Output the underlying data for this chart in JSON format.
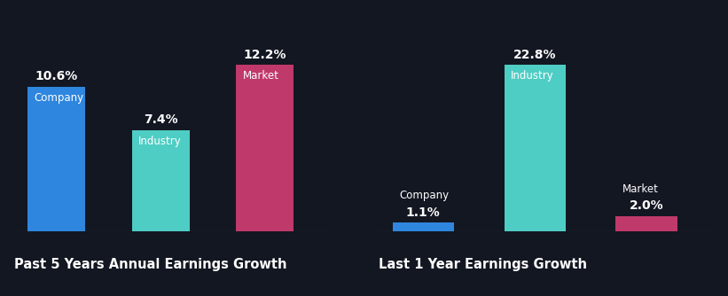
{
  "background_color": "#131722",
  "chart1": {
    "title": "Past 5 Years Annual Earnings Growth",
    "values": [
      10.6,
      7.4,
      12.2
    ],
    "colors": [
      "#2e86de",
      "#4ecdc4",
      "#c0396b"
    ],
    "bar_labels": [
      "Company",
      "Industry",
      "Market"
    ]
  },
  "chart2": {
    "title": "Last 1 Year Earnings Growth",
    "values": [
      1.1,
      22.8,
      2.0
    ],
    "colors": [
      "#2e86de",
      "#4ecdc4",
      "#c0396b"
    ],
    "bar_labels": [
      "Company",
      "Industry",
      "Market"
    ]
  },
  "title_fontsize": 10.5,
  "label_fontsize": 8.5,
  "value_fontsize": 10,
  "text_color": "#ffffff"
}
